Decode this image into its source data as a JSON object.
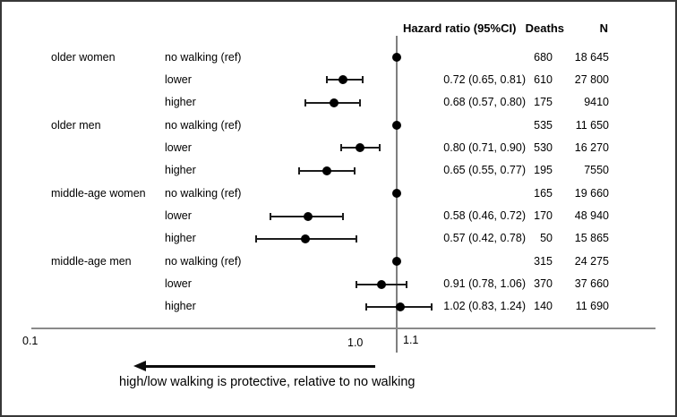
{
  "chart_data": {
    "type": "forest",
    "x_axis": {
      "scale": "log",
      "tick_labels": [
        "0.1",
        "1.0",
        "1.1"
      ],
      "reference_line_value": 1.0,
      "range": [
        0.1,
        1.3
      ]
    },
    "column_headers": {
      "hazard_ratio": "Hazard ratio (95%CI)",
      "deaths": "Deaths",
      "n": "N"
    },
    "groups": [
      "older women",
      "older men",
      "middle-age women",
      "middle-age men"
    ],
    "rows": [
      {
        "group": "older women",
        "category": "no walking (ref)",
        "reference": true,
        "hr": 1.0,
        "ci_low": null,
        "ci_high": null,
        "hr_label": "",
        "deaths": "680",
        "n": "18 645"
      },
      {
        "group": "",
        "category": "lower",
        "reference": false,
        "hr": 0.72,
        "ci_low": 0.65,
        "ci_high": 0.81,
        "hr_label": "0.72 (0.65, 0.81)",
        "deaths": "610",
        "n": "27 800"
      },
      {
        "group": "",
        "category": "higher",
        "reference": false,
        "hr": 0.68,
        "ci_low": 0.57,
        "ci_high": 0.8,
        "hr_label": "0.68 (0.57, 0.80)",
        "deaths": "175",
        "n": "9410"
      },
      {
        "group": "older men",
        "category": "no walking (ref)",
        "reference": true,
        "hr": 1.0,
        "ci_low": null,
        "ci_high": null,
        "hr_label": "",
        "deaths": "535",
        "n": "11 650"
      },
      {
        "group": "",
        "category": "lower",
        "reference": false,
        "hr": 0.8,
        "ci_low": 0.71,
        "ci_high": 0.9,
        "hr_label": "0.80 (0.71, 0.90)",
        "deaths": "530",
        "n": "16 270"
      },
      {
        "group": "",
        "category": "higher",
        "reference": false,
        "hr": 0.65,
        "ci_low": 0.55,
        "ci_high": 0.77,
        "hr_label": "0.65 (0.55, 0.77)",
        "deaths": "195",
        "n": "7550"
      },
      {
        "group": "middle-age women",
        "category": "no walking (ref)",
        "reference": true,
        "hr": 1.0,
        "ci_low": null,
        "ci_high": null,
        "hr_label": "",
        "deaths": "165",
        "n": "19 660"
      },
      {
        "group": "",
        "category": "lower",
        "reference": false,
        "hr": 0.58,
        "ci_low": 0.46,
        "ci_high": 0.72,
        "hr_label": "0.58 (0.46, 0.72)",
        "deaths": "170",
        "n": "48 940"
      },
      {
        "group": "",
        "category": "higher",
        "reference": false,
        "hr": 0.57,
        "ci_low": 0.42,
        "ci_high": 0.78,
        "hr_label": "0.57 (0.42, 0.78)",
        "deaths": "50",
        "n": "15 865"
      },
      {
        "group": "middle-age men",
        "category": "no walking (ref)",
        "reference": true,
        "hr": 1.0,
        "ci_low": null,
        "ci_high": null,
        "hr_label": "",
        "deaths": "315",
        "n": "24 275"
      },
      {
        "group": "",
        "category": "lower",
        "reference": false,
        "hr": 0.91,
        "ci_low": 0.78,
        "ci_high": 1.06,
        "hr_label": "0.91 (0.78, 1.06)",
        "deaths": "370",
        "n": "37 660"
      },
      {
        "group": "",
        "category": "higher",
        "reference": false,
        "hr": 1.02,
        "ci_low": 0.83,
        "ci_high": 1.24,
        "hr_label": "1.02 (0.83, 1.24)",
        "deaths": "140",
        "n": "11 690"
      }
    ],
    "annotation": {
      "text": "high/low walking is protective, relative to no walking",
      "arrow_direction": "left"
    },
    "colors": {
      "marker": "#000000",
      "ci_line": "#1c1c1c",
      "reference_line": "#7f7f7f",
      "axis_line": "#8a8a8a",
      "text": "#000000"
    }
  }
}
